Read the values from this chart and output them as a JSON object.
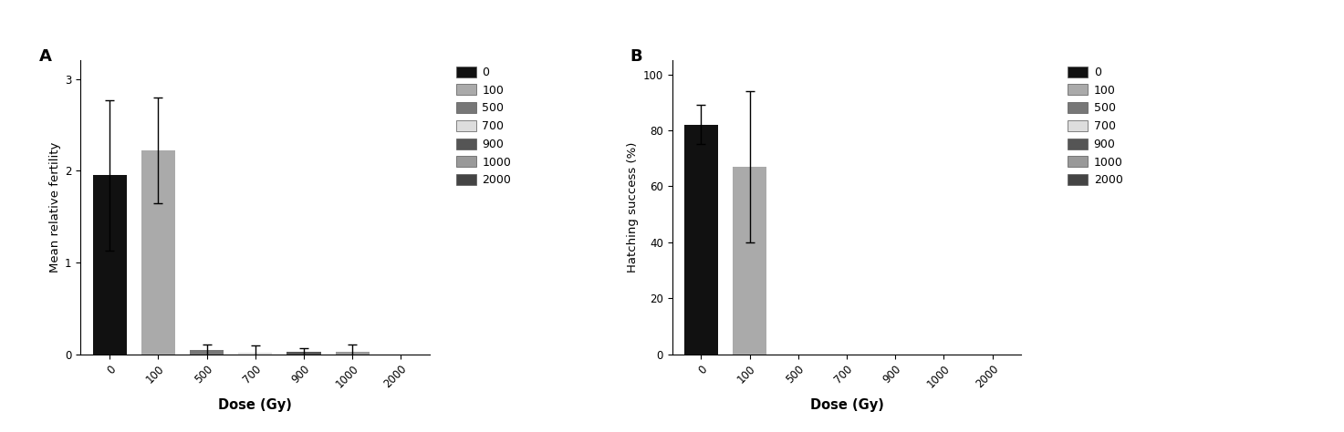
{
  "panel_A": {
    "label": "A",
    "categories": [
      "0",
      "100",
      "500",
      "700",
      "900",
      "1000",
      "2000"
    ],
    "values": [
      1.95,
      2.22,
      0.05,
      0.02,
      0.03,
      0.03,
      0.0
    ],
    "errors": [
      0.82,
      0.58,
      0.06,
      0.08,
      0.04,
      0.08,
      0.0
    ],
    "colors": [
      "#111111",
      "#AAAAAA",
      "#777777",
      "#DDDDDD",
      "#555555",
      "#999999",
      "#444444"
    ],
    "ylabel": "Mean relative fertility",
    "xlabel": "Dose (Gy)",
    "ylim": [
      0,
      3.2
    ],
    "yticks": [
      0,
      1,
      2,
      3
    ]
  },
  "panel_B": {
    "label": "B",
    "categories": [
      "0",
      "100",
      "500",
      "700",
      "900",
      "1000",
      "2000"
    ],
    "values": [
      82,
      67,
      0,
      0,
      0,
      0,
      0
    ],
    "errors": [
      7,
      27,
      0,
      0,
      0,
      0,
      0
    ],
    "colors": [
      "#111111",
      "#AAAAAA",
      "#777777",
      "#DDDDDD",
      "#555555",
      "#999999",
      "#444444"
    ],
    "ylabel": "Hatching success (%)",
    "xlabel": "Dose (Gy)",
    "ylim": [
      0,
      105
    ],
    "yticks": [
      0,
      20,
      40,
      60,
      80,
      100
    ]
  },
  "legend_labels": [
    "0",
    "100",
    "500",
    "700",
    "900",
    "1000",
    "2000"
  ],
  "legend_colors": [
    "#111111",
    "#AAAAAA",
    "#777777",
    "#DDDDDD",
    "#555555",
    "#999999",
    "#444444"
  ],
  "bar_width": 0.7,
  "figure_width": 14.73,
  "figure_height": 4.74,
  "background_color": "#FFFFFF"
}
